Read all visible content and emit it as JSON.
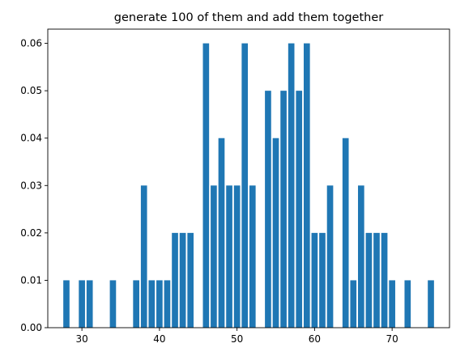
{
  "chart_data": {
    "type": "bar",
    "title": "generate 100 of them and add them together",
    "xlabel": "",
    "ylabel": "",
    "bar_color": "#1f77b4",
    "xlim": [
      25.6,
      77.4
    ],
    "ylim": [
      0,
      0.063
    ],
    "bar_width": 0.8,
    "x_ticks": [
      30,
      40,
      50,
      60,
      70
    ],
    "y_ticks": [
      0.0,
      0.01,
      0.02,
      0.03,
      0.04,
      0.05,
      0.06
    ],
    "x_tick_labels": [
      "30",
      "40",
      "50",
      "60",
      "70"
    ],
    "y_tick_labels": [
      "0.00",
      "0.01",
      "0.02",
      "0.03",
      "0.04",
      "0.05",
      "0.06"
    ],
    "x": [
      28,
      30,
      31,
      34,
      37,
      38,
      39,
      40,
      41,
      42,
      43,
      44,
      46,
      47,
      48,
      49,
      50,
      51,
      52,
      54,
      55,
      56,
      57,
      58,
      59,
      60,
      61,
      62,
      64,
      65,
      66,
      67,
      68,
      69,
      70,
      72,
      75
    ],
    "values": [
      0.01,
      0.01,
      0.01,
      0.01,
      0.01,
      0.03,
      0.01,
      0.01,
      0.01,
      0.02,
      0.02,
      0.02,
      0.06,
      0.03,
      0.04,
      0.03,
      0.03,
      0.06,
      0.03,
      0.05,
      0.04,
      0.05,
      0.06,
      0.05,
      0.06,
      0.02,
      0.02,
      0.03,
      0.04,
      0.01,
      0.03,
      0.02,
      0.02,
      0.02,
      0.01,
      0.01,
      0.01
    ]
  }
}
